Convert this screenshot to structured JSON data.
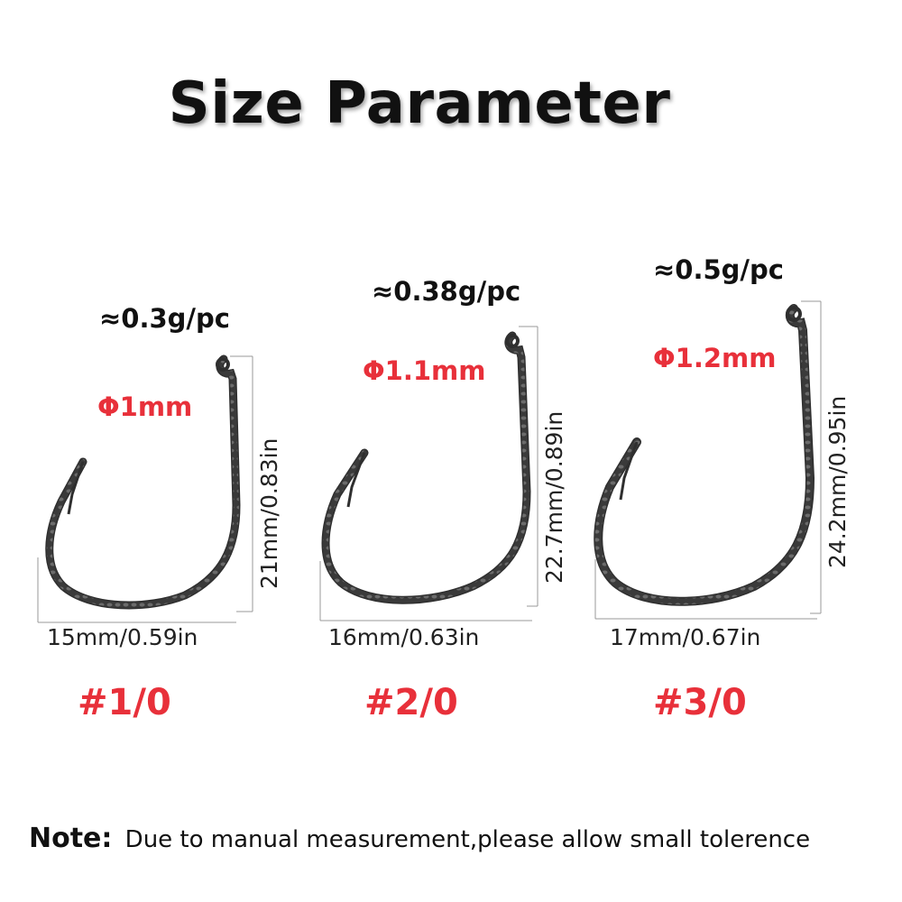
{
  "title": "Size Parameter",
  "hooks": [
    {
      "size": "#1/0",
      "weight": "≈0.3g/pc",
      "diameter": "Φ1mm",
      "width_label": "15mm/0.59in",
      "length_label": "21mm/0.83in"
    },
    {
      "size": "#2/0",
      "weight": "≈0.38g/pc",
      "diameter": "Φ1.1mm",
      "width_label": "16mm/0.63in",
      "length_label": "22.7mm/0.89in"
    },
    {
      "size": "#3/0",
      "weight": "≈0.5g/pc",
      "diameter": "Φ1.2mm",
      "width_label": "17mm/0.67in",
      "length_label": "24.2mm/0.95in"
    }
  ],
  "note": {
    "label": "Note:",
    "text": "Due to manual measurement,please allow small tolerence"
  },
  "colors": {
    "accent": "#e8303a",
    "hook": "#3b3b3b",
    "text": "#111111"
  }
}
